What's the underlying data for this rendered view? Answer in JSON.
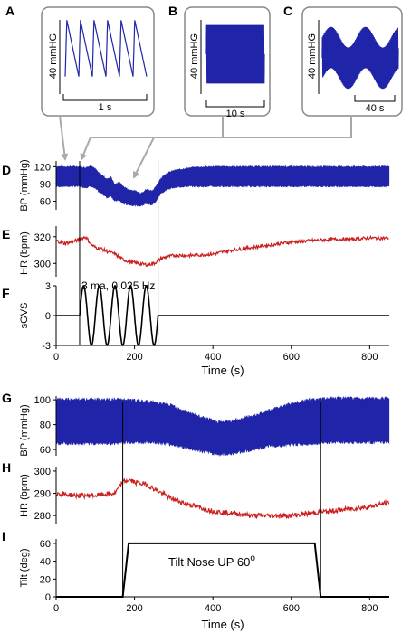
{
  "colors": {
    "bp": "#1f24a8",
    "hr": "#cc1f1f",
    "stim": "#000000",
    "connector": "#a9a9a9",
    "inset_border": "#888888"
  },
  "chart_data": [
    {
      "id": "A",
      "type": "line",
      "panel_label": "A",
      "ylabel": "40 mmHG",
      "scale_bar": "1 s",
      "description_series": "blood pressure waveform",
      "cycles_shown": 6
    },
    {
      "id": "B",
      "type": "line",
      "panel_label": "B",
      "ylabel": "40 mmHG",
      "scale_bar": "10 s"
    },
    {
      "id": "C",
      "type": "line",
      "panel_label": "C",
      "ylabel": "40 mmHG",
      "scale_bar": "40 s"
    },
    {
      "id": "D",
      "type": "area",
      "panel_label": "D",
      "ylabel": "BP (mmHg)",
      "yticks": [
        60,
        90,
        120
      ],
      "ylim": [
        45,
        130
      ],
      "xlim": [
        0,
        850
      ],
      "upper": {
        "x": [
          0,
          60,
          75,
          90,
          100,
          110,
          120,
          130,
          140,
          150,
          160,
          170,
          185,
          200,
          215,
          230,
          245,
          255,
          265,
          280,
          300,
          330,
          360,
          400,
          850
        ],
        "y": [
          120,
          120,
          118,
          122,
          116,
          108,
          104,
          98,
          102,
          88,
          94,
          86,
          80,
          78,
          74,
          80,
          78,
          85,
          98,
          108,
          113,
          117,
          119,
          120,
          120
        ]
      },
      "lower": {
        "x": [
          0,
          60,
          75,
          90,
          100,
          110,
          120,
          130,
          140,
          150,
          160,
          170,
          185,
          200,
          215,
          230,
          245,
          255,
          265,
          280,
          300,
          330,
          360,
          400,
          850
        ],
        "y": [
          86,
          86,
          84,
          86,
          82,
          76,
          72,
          66,
          70,
          60,
          62,
          56,
          54,
          53,
          52,
          56,
          54,
          60,
          72,
          80,
          84,
          86,
          86,
          86,
          86
        ]
      }
    },
    {
      "id": "E",
      "type": "line",
      "panel_label": "E",
      "ylabel": "HR (bpm)",
      "yticks": [
        300,
        320
      ],
      "ylim": [
        290,
        328
      ],
      "xlim": [
        0,
        850
      ],
      "x": [
        0,
        20,
        40,
        60,
        75,
        90,
        100,
        115,
        130,
        150,
        170,
        190,
        210,
        230,
        250,
        270,
        300,
        350,
        400,
        450,
        500,
        550,
        600,
        650,
        700,
        750,
        800,
        850
      ],
      "y": [
        317,
        315,
        316,
        318,
        320,
        314,
        312,
        311,
        309,
        307,
        303,
        301,
        300,
        299,
        300,
        304,
        306,
        306,
        307,
        310,
        312,
        314,
        316,
        317,
        318,
        318,
        319,
        319
      ]
    },
    {
      "id": "F",
      "type": "line",
      "panel_label": "F",
      "ylabel": "sGVS",
      "yticks": [
        -3,
        0,
        3
      ],
      "ylim": [
        -3,
        3
      ],
      "xlim": [
        0,
        850
      ],
      "xticks": [
        0,
        200,
        400,
        600,
        800
      ],
      "xlabel": "Time (s)",
      "annotation": "3 ma, 0.025 Hz",
      "stimulus": {
        "start": 60,
        "end": 260,
        "amplitude": 3,
        "frequency_hz": 0.025
      }
    },
    {
      "id": "G",
      "type": "area",
      "panel_label": "G",
      "ylabel": "BP (mmHg)",
      "yticks": [
        60,
        80,
        100
      ],
      "ylim": [
        55,
        103
      ],
      "xlim": [
        0,
        850
      ],
      "upper": {
        "x": [
          0,
          150,
          170,
          250,
          300,
          350,
          400,
          420,
          450,
          500,
          550,
          600,
          650,
          700,
          850
        ],
        "y": [
          100,
          100,
          100,
          98,
          95,
          88,
          83,
          82,
          83,
          87,
          92,
          97,
          100,
          101,
          101
        ]
      },
      "lower": {
        "x": [
          0,
          150,
          170,
          250,
          300,
          350,
          400,
          420,
          450,
          500,
          550,
          600,
          650,
          700,
          850
        ],
        "y": [
          65,
          65,
          66,
          66,
          64,
          60,
          57,
          56,
          57,
          60,
          63,
          64,
          65,
          66,
          66
        ]
      }
    },
    {
      "id": "H",
      "type": "line",
      "panel_label": "H",
      "ylabel": "HR (bpm)",
      "yticks": [
        280,
        290,
        300
      ],
      "ylim": [
        276,
        302
      ],
      "xlim": [
        0,
        850
      ],
      "x": [
        0,
        50,
        100,
        150,
        170,
        185,
        200,
        230,
        260,
        290,
        320,
        360,
        400,
        450,
        500,
        550,
        600,
        650,
        700,
        750,
        800,
        850
      ],
      "y": [
        290,
        289,
        289,
        290,
        295,
        296,
        295,
        294,
        291,
        288,
        286,
        284,
        282,
        281,
        280,
        280,
        280,
        281,
        282,
        283,
        284,
        286
      ]
    },
    {
      "id": "I",
      "type": "line",
      "panel_label": "I",
      "ylabel": "Tilt (deg)",
      "yticks": [
        0,
        20,
        40,
        60
      ],
      "ylim": [
        0,
        65
      ],
      "xlim": [
        0,
        850
      ],
      "xticks": [
        0,
        200,
        400,
        600,
        800
      ],
      "xlabel": "Time (s)",
      "annotation": "Tilt Nose UP 60",
      "annotation_sup": "o",
      "x": [
        0,
        170,
        185,
        660,
        675,
        850
      ],
      "y": [
        0,
        0,
        60,
        60,
        0,
        0
      ]
    }
  ]
}
